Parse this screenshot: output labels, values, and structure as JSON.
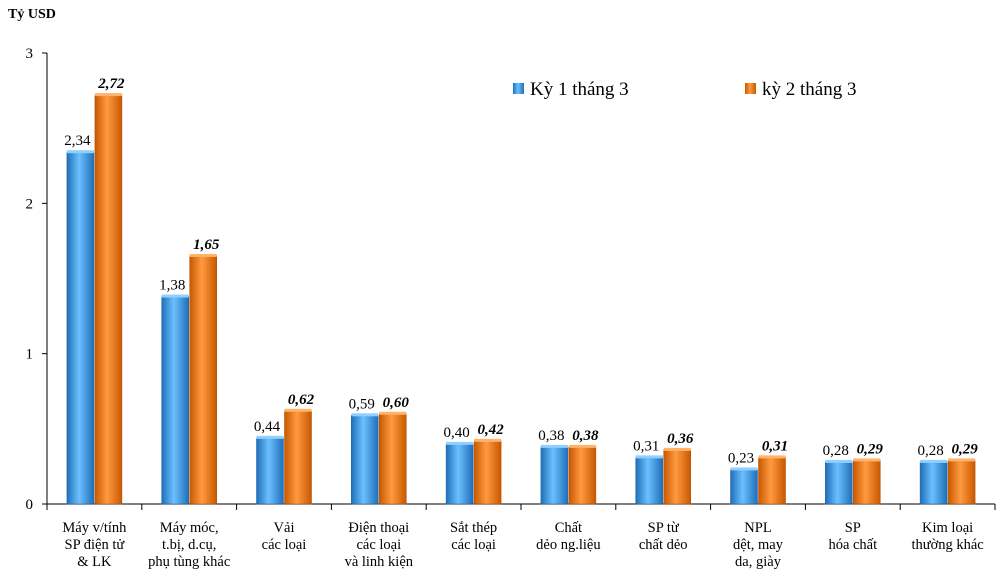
{
  "chart_data": {
    "type": "bar",
    "title": "",
    "ylabel": "Tỷ USD",
    "xlabel": "",
    "ylim": [
      0,
      3
    ],
    "yticks": [
      "0",
      "1",
      "2",
      "3"
    ],
    "grid": false,
    "legend_position": "top-right",
    "categories": [
      [
        "Máy v/tính",
        "SP điện tử",
        "& LK"
      ],
      [
        "Máy móc,",
        "t.bị, d.cụ,",
        "phụ tùng khác"
      ],
      [
        "Vải",
        "các loại"
      ],
      [
        "Điện thoại",
        "các loại",
        "và linh kiện"
      ],
      [
        "Sắt thép",
        "các loại"
      ],
      [
        "Chất",
        "dẻo ng.liệu"
      ],
      [
        "SP từ",
        "chất dẻo"
      ],
      [
        "NPL",
        "dệt, may",
        "da, giày"
      ],
      [
        "SP",
        "hóa chất"
      ],
      [
        "Kim loại",
        "thường khác"
      ]
    ],
    "series": [
      {
        "name": "Kỳ 1 tháng 3",
        "color": "#2f8fdc",
        "values": [
          2.34,
          1.38,
          0.44,
          0.59,
          0.4,
          0.38,
          0.31,
          0.23,
          0.28,
          0.28
        ],
        "labels": [
          "2,34",
          "1,38",
          "0,44",
          "0,59",
          "0,40",
          "0,38",
          "0,31",
          "0,23",
          "0,28",
          "0,28"
        ]
      },
      {
        "name": "kỳ 2 tháng 3",
        "color": "#f07a1a",
        "values": [
          2.72,
          1.65,
          0.62,
          0.6,
          0.42,
          0.38,
          0.36,
          0.31,
          0.29,
          0.29
        ],
        "labels": [
          "2,72",
          "1,65",
          "0,62",
          "0,60",
          "0,42",
          "0,38",
          "0,36",
          "0,31",
          "0,29",
          "0,29"
        ]
      }
    ]
  }
}
